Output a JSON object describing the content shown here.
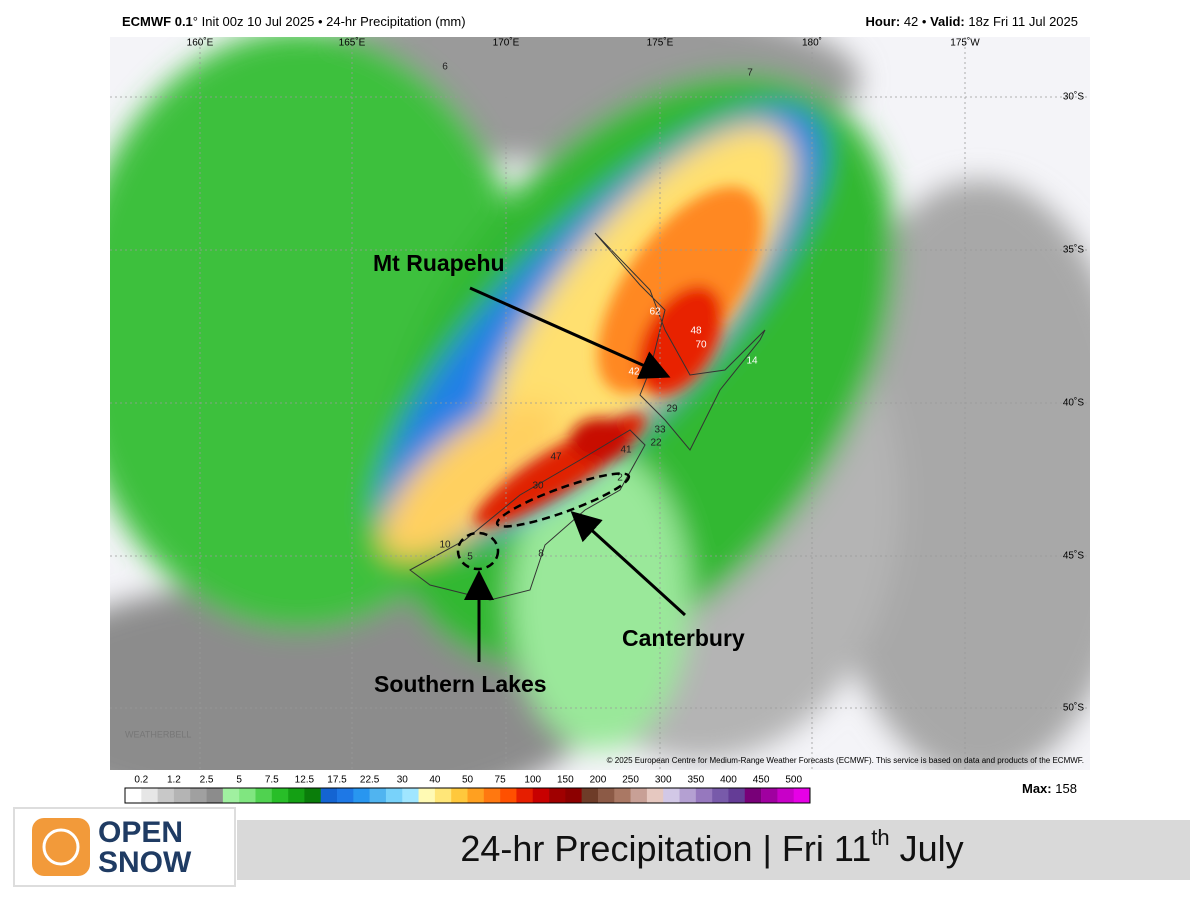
{
  "header": {
    "left_bold": "ECMWF 0.1",
    "left_rest": "° Init 00z 10 Jul 2025 • 24-hr Precipitation (mm)",
    "hour_label": "Hour:",
    "hour_value": "42 •",
    "valid_label": "Valid:",
    "valid_value": "18z Fri 11 Jul 2025"
  },
  "map": {
    "lon_labels": [
      "160˚E",
      "165˚E",
      "170˚E",
      "175˚E",
      "180˚",
      "175˚W"
    ],
    "lat_labels": [
      "30˚S",
      "35˚S",
      "40˚S",
      "45˚S",
      "50˚S"
    ],
    "point_values": [
      "6",
      "7",
      "62",
      "48",
      "70",
      "14",
      "42",
      "29",
      "33",
      "22",
      "41",
      "47",
      "30",
      "2",
      "10",
      "5",
      "8"
    ],
    "annotations": [
      "Mt Ruapehu",
      "Canterbury",
      "Southern Lakes"
    ],
    "copyright": "© 2025 European Centre for Medium-Range Weather Forecasts (ECMWF). This service is based on data and products of the ECMWF.",
    "watermark": "WEATHERBELL"
  },
  "colorbar": {
    "labels": [
      "0.2",
      "1.2",
      "2.5",
      "5",
      "7.5",
      "12.5",
      "17.5",
      "22.5",
      "30",
      "40",
      "50",
      "75",
      "100",
      "150",
      "200",
      "250",
      "300",
      "350",
      "400",
      "450",
      "500"
    ],
    "colors": [
      "#ffffff",
      "#e6e6e6",
      "#c8c8c8",
      "#b4b4b4",
      "#a0a0a0",
      "#8c8c8c",
      "#a0f0a0",
      "#80e680",
      "#50d250",
      "#28be28",
      "#14a014",
      "#0a7d0a",
      "#1464d2",
      "#1e78e6",
      "#2896f0",
      "#50b4f0",
      "#78d2fa",
      "#a0e6ff",
      "#fffab4",
      "#ffe678",
      "#ffc83c",
      "#ffa020",
      "#ff7810",
      "#ff5000",
      "#e61e00",
      "#c80000",
      "#a00000",
      "#8c0000",
      "#6e3c28",
      "#8c5a46",
      "#aa7864",
      "#c8a096",
      "#e6c8c0",
      "#d2c8e6",
      "#b4a0d2",
      "#9678be",
      "#785aaa",
      "#643c96",
      "#780078",
      "#a000a0",
      "#c800c8",
      "#e600e6"
    ],
    "max_label": "Max:",
    "max_value": "158"
  },
  "footer": {
    "logo_top": "OPEN",
    "logo_bottom": "SNOW",
    "title": "24-hr Precipitation | Fri 11",
    "title_sup": "th",
    "title_end": " July"
  }
}
